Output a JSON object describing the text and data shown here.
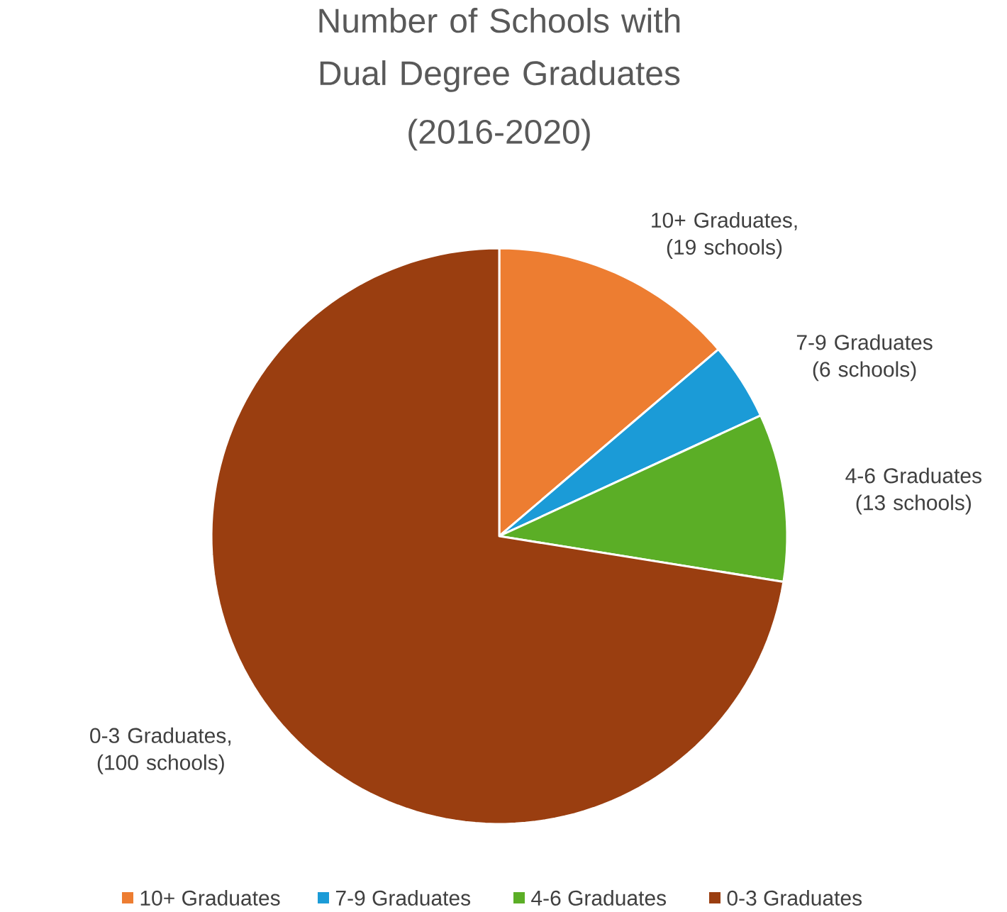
{
  "chart_data": {
    "type": "pie",
    "title": "Number of Schools with Dual Degree Graduates",
    "subtitle": "(2016-2020)",
    "categories": [
      "10+ Graduates",
      "7-9 Graduates",
      "4-6 Graduates",
      "0-3 Graduates"
    ],
    "values": [
      19,
      6,
      13,
      100
    ],
    "colors": [
      "#ed7d31",
      "#1b9bd7",
      "#5bae26",
      "#9a3e10"
    ],
    "value_labels": [
      "10+ Graduates, (19 schools)",
      "7-9 Graduates (6 schools)",
      "4-6 Graduates (13 schools)",
      "0-3 Graduates, (100 schools)"
    ],
    "legend": "bottom"
  }
}
